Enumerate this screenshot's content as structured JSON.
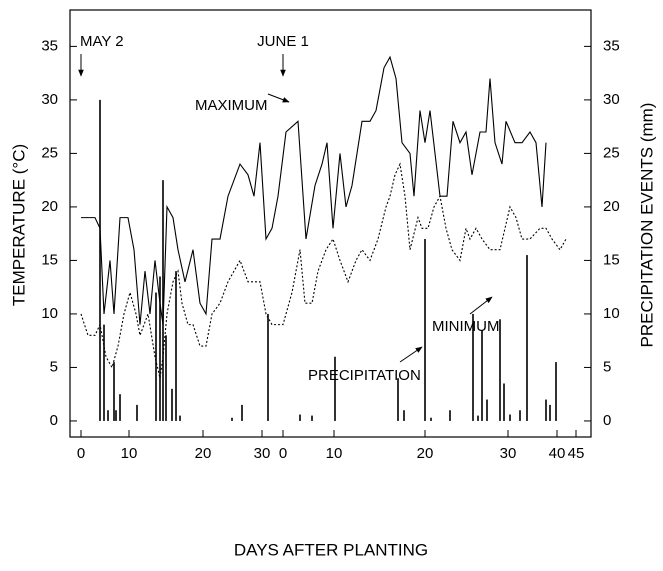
{
  "chart_data": {
    "type": "line",
    "x_label": "DAYS AFTER PLANTING",
    "y_label": "TEMPERATURE  (°C)",
    "y2_label": "PRECIPITATION EVENTS (mm)",
    "annotations": [
      "MAY 2",
      "JUNE 1"
    ],
    "xlim": [
      -2.2,
      102
    ],
    "xticks": [
      {
        "value": 0,
        "label": "0"
      },
      {
        "value": 9.6,
        "label": "10"
      },
      {
        "value": 24.4,
        "label": "20"
      },
      {
        "value": 36.2,
        "label": "30"
      },
      {
        "value": 40.4,
        "label": "0"
      },
      {
        "value": 50.6,
        "label": "10"
      },
      {
        "value": 68.8,
        "label": "20"
      },
      {
        "value": 85.4,
        "label": "30"
      },
      {
        "value": 95.2,
        "label": "40"
      },
      {
        "value": 99,
        "label": "45"
      }
    ],
    "ylim": [
      -1.5,
      38.4
    ],
    "yticks": [
      0,
      5,
      10,
      15,
      20,
      25,
      30,
      35
    ],
    "y2lim": [
      -1.5,
      38.4
    ],
    "y2ticks": [
      0,
      5,
      10,
      15,
      20,
      25,
      30,
      35
    ],
    "series": [
      {
        "name": "MAXIMUM",
        "type": "line",
        "color": "#000000",
        "dash": "none",
        "x": [
          0,
          2.8,
          3.8,
          4.6,
          5.8,
          6.6,
          7.8,
          9.4,
          10.6,
          11.8,
          12.8,
          13.8,
          14.8,
          15.8,
          16.4,
          17.2,
          18.4,
          19.4,
          20.8,
          22.4,
          23.8,
          25,
          26.2,
          27.8,
          29.4,
          31.8,
          33.4,
          34.6,
          35.8,
          37,
          38.2,
          39.4,
          41,
          43.4,
          45,
          46.8,
          48.2,
          49.2,
          50.4,
          51.8,
          53,
          54.2,
          56.2,
          57.8,
          59,
          60.6,
          61.8,
          63,
          64.2,
          65.8,
          66.6,
          67.8,
          68.8,
          69.8,
          71.8,
          73.2,
          74.4,
          75.8,
          77,
          78.2,
          79.8,
          81,
          81.8,
          82.8,
          84.2,
          85,
          86.8,
          88.2,
          89.8,
          91,
          92.2,
          93
        ],
        "values": [
          19,
          19,
          18,
          10,
          15,
          10,
          19,
          19,
          16,
          9,
          14,
          10,
          15,
          11,
          9,
          20,
          19,
          16,
          13,
          16,
          11,
          10,
          17,
          17,
          21,
          24,
          23,
          21,
          26,
          17,
          18,
          21,
          27,
          28,
          17,
          22,
          24,
          26,
          18,
          25,
          20,
          22,
          28,
          28,
          29,
          33,
          34,
          32,
          26,
          25,
          21,
          29,
          26,
          29,
          21,
          21,
          28,
          26,
          27,
          23,
          27,
          27,
          32,
          26,
          24,
          28,
          26,
          26,
          27,
          26,
          20,
          26
        ]
      },
      {
        "name": "MINIMUM",
        "type": "line",
        "color": "#000000",
        "dash": "2,2",
        "x": [
          0,
          1.4,
          2.8,
          3.8,
          5,
          6.2,
          7.4,
          8.6,
          9.8,
          11,
          11.8,
          13.4,
          14.8,
          15.8,
          16.4,
          17.2,
          18.4,
          19.4,
          20.2,
          21.4,
          22.4,
          23.8,
          25,
          26.2,
          27.8,
          29.4,
          31.8,
          33.4,
          35.8,
          37,
          38.2,
          40.4,
          42.2,
          43.8,
          44.8,
          46.2,
          47.4,
          49,
          50.4,
          51.8,
          53.4,
          55,
          56.2,
          57.8,
          59.4,
          61,
          61.8,
          62.8,
          63.8,
          64.8,
          65.8,
          67.4,
          68.2,
          69.4,
          70.6,
          71.8,
          73,
          74.2,
          75.8,
          77,
          77.8,
          79,
          80.2,
          81.8,
          83.8,
          85.8,
          87,
          88.2,
          89.8,
          91.8,
          93,
          94.2,
          95.8,
          97
        ],
        "values": [
          10,
          8,
          8,
          9,
          6,
          5,
          7,
          10,
          12,
          10,
          8,
          10,
          6,
          4,
          6,
          10,
          13,
          14,
          11,
          9,
          9,
          7,
          7,
          10,
          11,
          13,
          15,
          13,
          13,
          10,
          9,
          9,
          12,
          16,
          11,
          11,
          14,
          16,
          17,
          15,
          13,
          15,
          16,
          15,
          17,
          20,
          21,
          23,
          24,
          21,
          16,
          19,
          18,
          18,
          20,
          21,
          18,
          16,
          15,
          18,
          17,
          18,
          17,
          16,
          16,
          20,
          19,
          17,
          17,
          18,
          18,
          17,
          16,
          17
        ]
      },
      {
        "name": "PRECIPITATION",
        "type": "bar",
        "axis": "y2",
        "color": "#000000",
        "x": [
          3.8,
          4.6,
          5.4,
          6.6,
          7,
          7.8,
          11.2,
          15,
          15.8,
          16.4,
          17,
          18.2,
          19,
          19.8,
          30.2,
          32.2,
          37.4,
          43.8,
          46.2,
          50.8,
          63.4,
          64.6,
          68.8,
          70,
          73.8,
          78.4,
          79.4,
          80.2,
          81.2,
          83.8,
          84.6,
          85.8,
          87.8,
          89.2,
          93,
          93.8,
          95
        ],
        "values": [
          30,
          9,
          1,
          5.5,
          1,
          2.5,
          1.5,
          12,
          13.5,
          22.5,
          8,
          3,
          14,
          0.5,
          0.3,
          1.5,
          10,
          0.6,
          0.5,
          6,
          4,
          1,
          17,
          0.3,
          1,
          10,
          0.5,
          8.5,
          2,
          9.5,
          3.5,
          0.6,
          1,
          15.5,
          2,
          1.5,
          5.5
        ]
      }
    ]
  }
}
